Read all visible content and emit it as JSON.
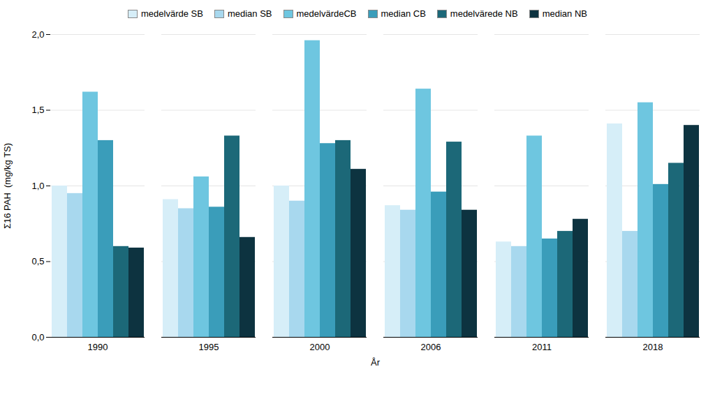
{
  "chart_data": {
    "type": "bar",
    "categories": [
      "1990",
      "1995",
      "2000",
      "2006",
      "2011",
      "2018"
    ],
    "series": [
      {
        "name": "medelvärde SB",
        "color": "#d6eef8",
        "values": [
          1.0,
          0.91,
          1.0,
          0.87,
          0.63,
          1.41
        ]
      },
      {
        "name": "median SB",
        "color": "#a8d8ee",
        "values": [
          0.95,
          0.85,
          0.9,
          0.84,
          0.6,
          0.7
        ]
      },
      {
        "name": "medelvärdeCB",
        "color": "#6ec6e0",
        "values": [
          1.62,
          1.06,
          1.96,
          1.64,
          1.33,
          1.55
        ]
      },
      {
        "name": "median CB",
        "color": "#3a9dba",
        "values": [
          1.3,
          0.86,
          1.28,
          0.96,
          0.65,
          1.01
        ]
      },
      {
        "name": "medelvärede NB",
        "color": "#1c6878",
        "values": [
          0.6,
          1.33,
          1.3,
          1.29,
          0.7,
          1.15
        ]
      },
      {
        "name": "median NB",
        "color": "#0d3340",
        "values": [
          0.59,
          0.66,
          1.11,
          0.84,
          0.78,
          1.4
        ]
      }
    ],
    "xlabel": "År",
    "ylabel": "Σ16 PAH  (mg/kg TS)",
    "ylim": [
      0.0,
      2.0
    ],
    "yticks": [
      {
        "value": 0.0,
        "label": "0,0"
      },
      {
        "value": 0.5,
        "label": "0,5"
      },
      {
        "value": 1.0,
        "label": "1,0"
      },
      {
        "value": 1.5,
        "label": "1,5"
      },
      {
        "value": 2.0,
        "label": "2,0"
      }
    ],
    "grid": true,
    "legend": "top"
  }
}
